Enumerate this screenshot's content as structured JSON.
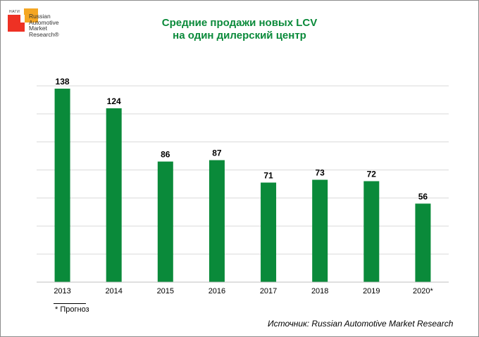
{
  "logo": {
    "small_text": "НАГИ",
    "lines": [
      "Russian",
      "Automotive",
      "Market",
      "Research®"
    ]
  },
  "title_lines": [
    "Средние продажи новых LCV",
    "на один дилерский центр"
  ],
  "colors": {
    "bar": "#0a8a3a",
    "title": "#0a8a3a",
    "grid": "#d9d9d9"
  },
  "footnote": "* Прогноз",
  "source": "Источник: Russian Automotive Market Research",
  "chart_data": {
    "type": "bar",
    "categories": [
      "2013",
      "2014",
      "2015",
      "2016",
      "2017",
      "2018",
      "2019",
      "2020*"
    ],
    "values": [
      138,
      124,
      86,
      87,
      71,
      73,
      72,
      56
    ],
    "ylim": [
      0,
      140
    ],
    "ytick_step": 20,
    "y_tick_labels_shown": false,
    "grid": true,
    "data_labels": true,
    "xlabel": "",
    "ylabel": ""
  }
}
